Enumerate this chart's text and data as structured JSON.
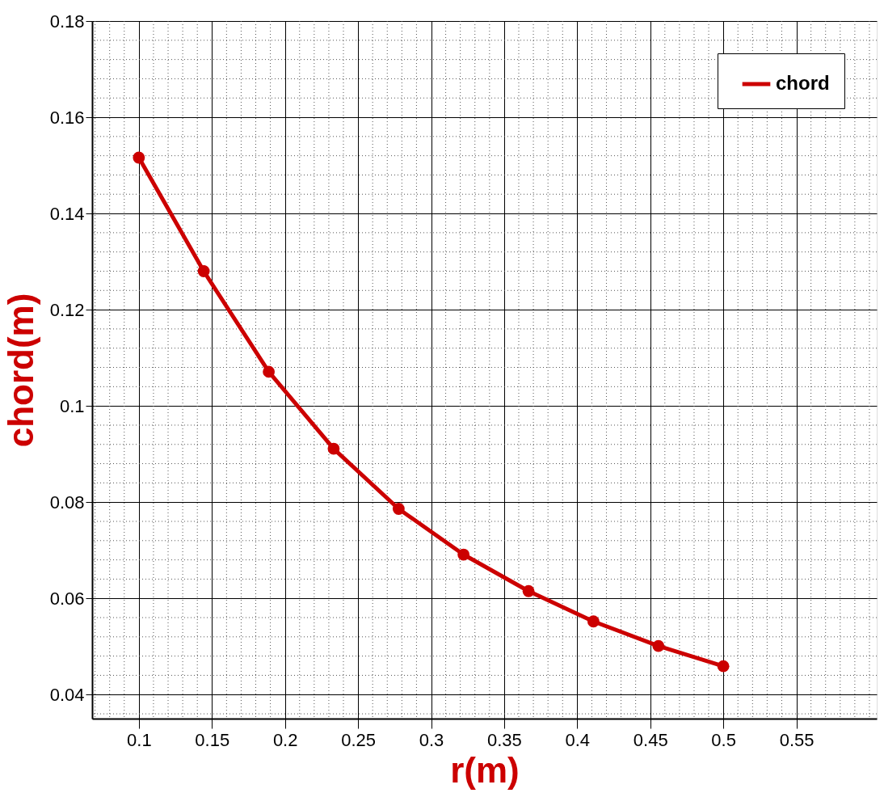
{
  "chart_data": {
    "type": "line",
    "xlabel": "r(m)",
    "ylabel": "chord(m)",
    "x": [
      0.1,
      0.1444,
      0.1889,
      0.2333,
      0.2778,
      0.3222,
      0.3667,
      0.4111,
      0.4556,
      0.5
    ],
    "series": [
      {
        "name": "chord",
        "color": "#cc0000",
        "values": [
          0.1516,
          0.128,
          0.1071,
          0.0911,
          0.0786,
          0.0691,
          0.0615,
          0.0552,
          0.0501,
          0.0459
        ]
      }
    ],
    "xlim": [
      0.068,
      0.605
    ],
    "xticks": [
      0.1,
      0.15,
      0.2,
      0.25,
      0.3,
      0.35,
      0.4,
      0.45,
      0.5,
      0.55
    ],
    "ylim": [
      0.035,
      0.18
    ],
    "yticks": [
      0.04,
      0.06,
      0.08,
      0.1,
      0.12,
      0.14,
      0.16,
      0.18
    ],
    "grid": true,
    "legend": "top right",
    "marker": "circle",
    "line_style": "solid"
  }
}
